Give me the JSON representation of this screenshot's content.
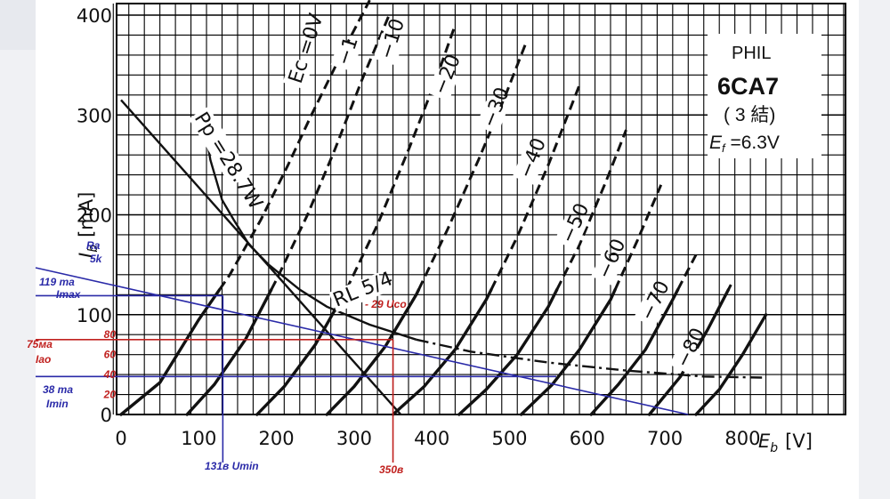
{
  "chart_data": {
    "type": "line",
    "title": "",
    "tube": {
      "maker": "PHIL",
      "model": "6CA7",
      "connection": "( 3 結)",
      "heater_label": "E",
      "heater_sub": "f",
      "heater_value": " =6.3V"
    },
    "x_axis": {
      "symbol": "E",
      "sub": "b",
      "unit": "[V]",
      "range": [
        0,
        800
      ],
      "ticks": [
        "0",
        "100",
        "200",
        "300",
        "400",
        "500",
        "600",
        "700",
        "800"
      ]
    },
    "y_axis": {
      "symbol": "I",
      "sub": "b",
      "unit": "[mA]",
      "range": [
        0,
        400
      ],
      "ticks": [
        "0",
        "100",
        "200",
        "300",
        "400"
      ]
    },
    "extra_y_ticks": [
      "20",
      "40",
      "60",
      "80"
    ],
    "grid": true,
    "series": [
      {
        "name": "Ec =0V",
        "points": [
          [
            0,
            0
          ],
          [
            50,
            32
          ],
          [
            100,
            95
          ],
          [
            140,
            140
          ],
          [
            180,
            195
          ],
          [
            215,
            250
          ],
          [
            245,
            300
          ],
          [
            280,
            355
          ],
          [
            320,
            415
          ]
        ]
      },
      {
        "name": "−1",
        "points": [
          [
            85,
            0
          ],
          [
            120,
            30
          ],
          [
            160,
            75
          ],
          [
            200,
            135
          ],
          [
            240,
            200
          ],
          [
            275,
            265
          ],
          [
            310,
            335
          ],
          [
            345,
            400
          ]
        ]
      },
      {
        "name": "−10",
        "points": [
          [
            175,
            0
          ],
          [
            210,
            28
          ],
          [
            250,
            70
          ],
          [
            290,
            125
          ],
          [
            330,
            190
          ],
          [
            370,
            265
          ],
          [
            405,
            335
          ],
          [
            430,
            390
          ]
        ]
      },
      {
        "name": "−20",
        "points": [
          [
            265,
            0
          ],
          [
            300,
            28
          ],
          [
            340,
            68
          ],
          [
            380,
            120
          ],
          [
            420,
            185
          ],
          [
            460,
            255
          ],
          [
            495,
            320
          ],
          [
            520,
            370
          ]
        ]
      },
      {
        "name": "−30",
        "points": [
          [
            350,
            0
          ],
          [
            390,
            28
          ],
          [
            430,
            65
          ],
          [
            470,
            115
          ],
          [
            510,
            178
          ],
          [
            550,
            250
          ],
          [
            590,
            330
          ]
        ]
      },
      {
        "name": "−40",
        "points": [
          [
            435,
            0
          ],
          [
            470,
            25
          ],
          [
            510,
            60
          ],
          [
            550,
            108
          ],
          [
            590,
            170
          ],
          [
            625,
            235
          ],
          [
            650,
            285
          ]
        ]
      },
      {
        "name": "−50",
        "points": [
          [
            515,
            0
          ],
          [
            555,
            30
          ],
          [
            590,
            65
          ],
          [
            630,
            115
          ],
          [
            665,
            175
          ],
          [
            695,
            230
          ]
        ]
      },
      {
        "name": "−60",
        "points": [
          [
            605,
            0
          ],
          [
            640,
            30
          ],
          [
            675,
            65
          ],
          [
            710,
            115
          ],
          [
            740,
            160
          ]
        ]
      },
      {
        "name": "−70",
        "points": [
          [
            680,
            0
          ],
          [
            720,
            38
          ],
          [
            755,
            85
          ],
          [
            785,
            130
          ]
        ]
      },
      {
        "name": "−80",
        "points": [
          [
            740,
            0
          ],
          [
            770,
            25
          ],
          [
            800,
            60
          ],
          [
            830,
            100
          ]
        ]
      }
    ],
    "plate_dissipation": {
      "label": "Pp =28.7W",
      "points": [
        [
          105,
          300
        ],
        [
          115,
          255
        ],
        [
          130,
          215
        ],
        [
          145,
          195
        ],
        [
          165,
          170
        ],
        [
          190,
          150
        ],
        [
          230,
          125
        ],
        [
          265,
          108
        ],
        [
          320,
          90
        ],
        [
          380,
          75
        ],
        [
          450,
          63
        ],
        [
          550,
          52
        ],
        [
          650,
          44
        ],
        [
          750,
          38
        ],
        [
          825,
          37
        ]
      ]
    },
    "load_line_printed": {
      "label": "RL 5/4",
      "points": [
        [
          0,
          315
        ],
        [
          360,
          0
        ]
      ]
    },
    "load_line_drawn": {
      "label": "Ra 5k",
      "points": [
        [
          0,
          168
        ],
        [
          730,
          0
        ]
      ]
    },
    "operating_points": [
      {
        "label_value": "119 ma",
        "label_name": "Imax",
        "y": 119,
        "x_label": "131в Umin",
        "x": 131
      },
      {
        "label_value": "75ма",
        "label_name": "Iao",
        "y": 75,
        "x_label": "350в",
        "x": 350
      },
      {
        "label_value": "38 ma",
        "label_name": "Imin",
        "y": 38
      }
    ],
    "bias_label": "- 29 Uco",
    "load_label_top": "Ra",
    "load_label_bottom": "5k",
    "colors": {
      "grid": "#000000",
      "blue": "#2a2aa8",
      "red": "#c0211f",
      "curve": "#111111",
      "background": "#ffffff",
      "frame": "#f0f1f4"
    }
  }
}
